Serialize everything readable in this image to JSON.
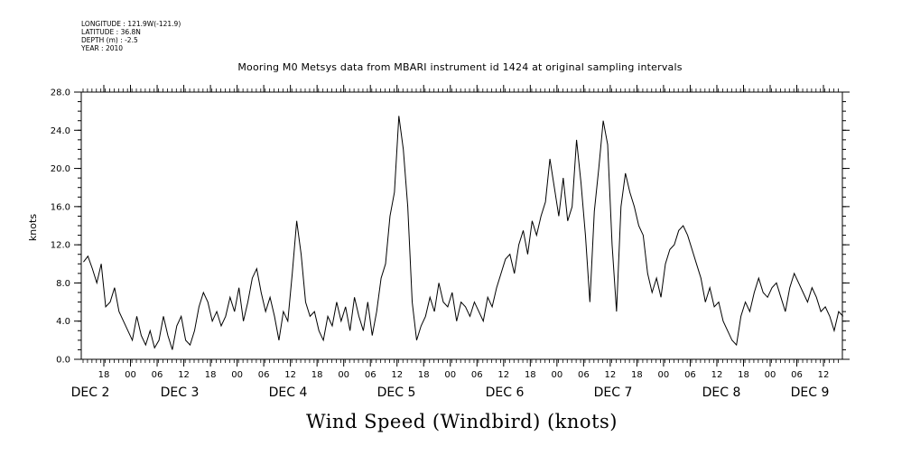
{
  "header": {
    "longitude": "LONGITUDE : 121.9W(-121.9)",
    "latitude": "LATITUDE : 36.8N",
    "depth": "DEPTH (m) : -2.5",
    "year": "YEAR : 2010"
  },
  "chart_data": {
    "type": "line",
    "title": "Mooring M0 Metsys data from MBARI instrument id 1424 at original sampling intervals",
    "xlabel": "Wind Speed (Windbird) (knots)",
    "ylabel": "knots",
    "ylim": [
      0,
      28
    ],
    "xlim_hours": [
      0,
      172
    ],
    "yticks": [
      "0.0",
      "4.0",
      "8.0",
      "12.0",
      "16.0",
      "20.0",
      "24.0",
      "28.0"
    ],
    "hour_ticks": [
      "18",
      "00",
      "06",
      "12",
      "18",
      "00",
      "06",
      "12",
      "18",
      "00",
      "06",
      "12",
      "18",
      "00",
      "06",
      "12",
      "18",
      "00",
      "06",
      "12",
      "18",
      "00",
      "06",
      "12",
      "18",
      "00",
      "06",
      "12"
    ],
    "date_labels": [
      "DEC  2",
      "DEC  3",
      "DEC  4",
      "DEC  5",
      "DEC  6",
      "DEC  7",
      "DEC  8",
      "DEC  9"
    ],
    "grid": false,
    "series": [
      {
        "color": "#000000",
        "x_hours": [
          0,
          1,
          2,
          3,
          4,
          5,
          6,
          7,
          8,
          9,
          10,
          11,
          12,
          13,
          14,
          15,
          16,
          17,
          18,
          19,
          20,
          21,
          22,
          23,
          24,
          25,
          26,
          27,
          28,
          29,
          30,
          31,
          32,
          33,
          34,
          35,
          36,
          37,
          38,
          39,
          40,
          41,
          42,
          43,
          44,
          45,
          46,
          47,
          48,
          49,
          50,
          51,
          52,
          53,
          54,
          55,
          56,
          57,
          58,
          59,
          60,
          61,
          62,
          63,
          64,
          65,
          66,
          67,
          68,
          69,
          70,
          71,
          72,
          73,
          74,
          75,
          76,
          77,
          78,
          79,
          80,
          81,
          82,
          83,
          84,
          85,
          86,
          87,
          88,
          89,
          90,
          91,
          92,
          93,
          94,
          95,
          96,
          97,
          98,
          99,
          100,
          101,
          102,
          103,
          104,
          105,
          106,
          107,
          108,
          109,
          110,
          111,
          112,
          113,
          114,
          115,
          116,
          117,
          118,
          119,
          120,
          121,
          122,
          123,
          124,
          125,
          126,
          127,
          128,
          129,
          130,
          131,
          132,
          133,
          134,
          135,
          136,
          137,
          138,
          139,
          140,
          141,
          142,
          143,
          144,
          145,
          146,
          147,
          148,
          149,
          150,
          151,
          152,
          153,
          154,
          155,
          156,
          157,
          158,
          159,
          160,
          161,
          162,
          163,
          164,
          165,
          166,
          167,
          168,
          169,
          170,
          171
        ],
        "values": [
          10.2,
          10.8,
          9.5,
          8.0,
          10.0,
          5.5,
          6.0,
          7.5,
          5.0,
          4.0,
          3.0,
          2.0,
          4.5,
          2.5,
          1.5,
          3.0,
          1.2,
          2.0,
          4.5,
          2.5,
          1.0,
          3.5,
          4.5,
          2.0,
          1.5,
          3.0,
          5.5,
          7.0,
          6.0,
          4.0,
          5.0,
          3.5,
          4.5,
          6.5,
          5.0,
          7.5,
          4.0,
          6.0,
          8.5,
          9.5,
          7.0,
          5.0,
          6.5,
          4.5,
          2.0,
          5.0,
          4.0,
          9.0,
          14.5,
          11.0,
          6.0,
          4.5,
          5.0,
          3.0,
          2.0,
          4.5,
          3.5,
          6.0,
          4.0,
          5.5,
          3.0,
          6.5,
          4.5,
          3.0,
          6.0,
          2.5,
          5.0,
          8.5,
          10.0,
          15.0,
          17.5,
          25.5,
          22.0,
          16.0,
          6.0,
          2.0,
          3.5,
          4.5,
          6.5,
          5.0,
          8.0,
          6.0,
          5.5,
          7.0,
          4.0,
          6.0,
          5.5,
          4.5,
          6.0,
          5.0,
          4.0,
          6.5,
          5.5,
          7.5,
          9.0,
          10.5,
          11.0,
          9.0,
          12.0,
          13.5,
          11.0,
          14.5,
          13.0,
          15.0,
          16.5,
          21.0,
          18.0,
          15.0,
          19.0,
          14.5,
          16.0,
          23.0,
          18.5,
          13.0,
          6.0,
          15.5,
          20.0,
          25.0,
          22.5,
          12.0,
          5.0,
          16.0,
          19.5,
          17.5,
          16.0,
          14.0,
          13.0,
          9.0,
          7.0,
          8.5,
          6.5,
          10.0,
          11.5,
          12.0,
          13.5,
          14.0,
          13.0,
          11.5,
          10.0,
          8.5,
          6.0,
          7.5,
          5.5,
          6.0,
          4.0,
          3.0,
          2.0,
          1.5,
          4.5,
          6.0,
          5.0,
          7.0,
          8.5,
          7.0,
          6.5,
          7.5,
          8.0,
          6.5,
          5.0,
          7.5,
          9.0,
          8.0,
          7.0,
          6.0,
          7.5,
          6.5,
          5.0,
          5.5,
          4.5,
          3.0,
          5.0,
          4.5
        ]
      }
    ]
  }
}
